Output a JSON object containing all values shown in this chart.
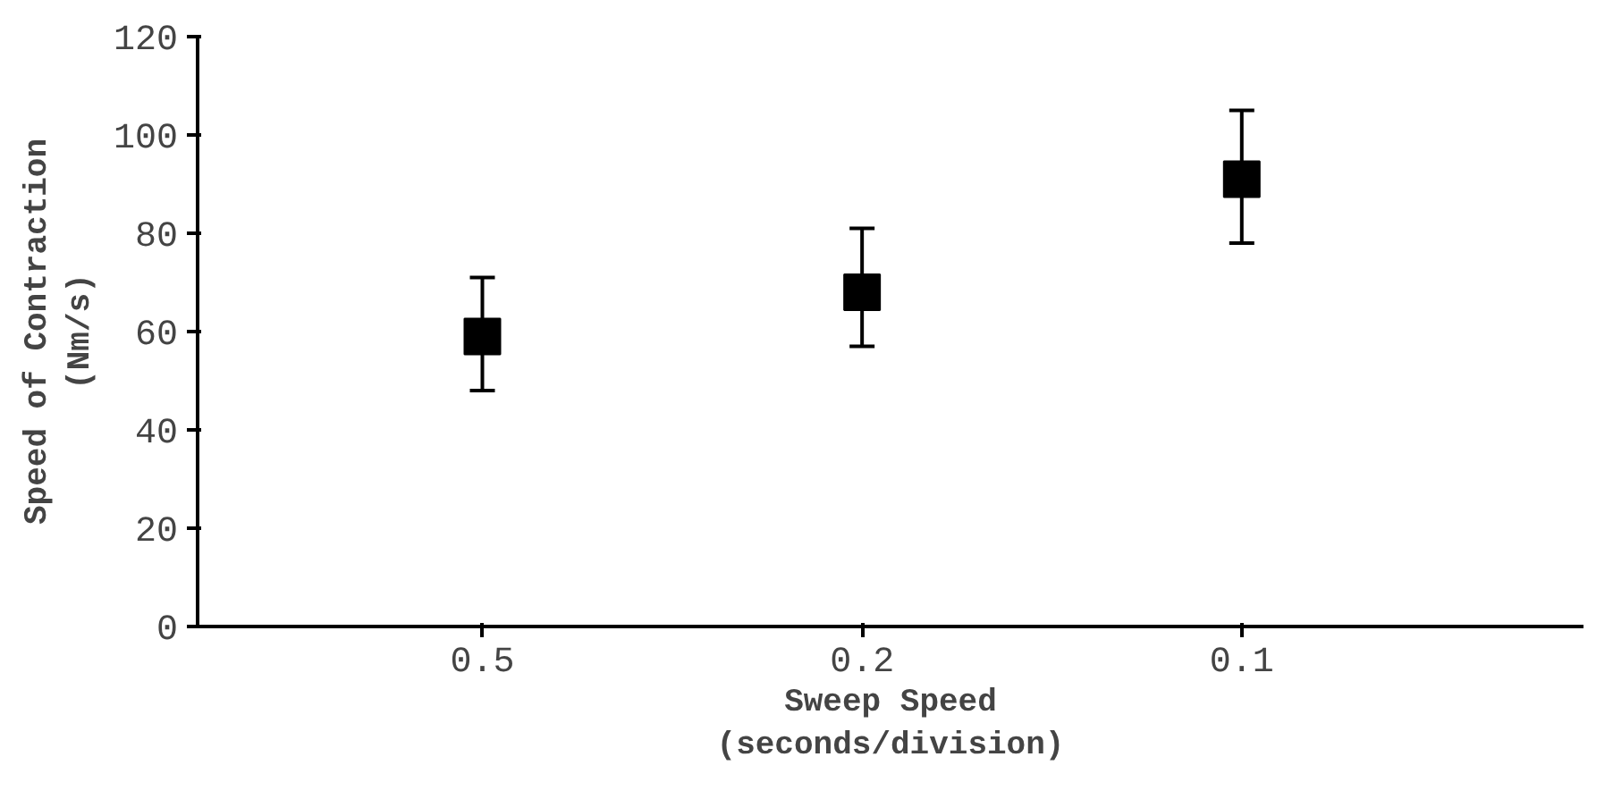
{
  "chart_data": {
    "type": "scatter",
    "xlabel": "Sweep Speed\n(seconds/division)",
    "ylabel": "Speed of Contraction\n(Nm/s)",
    "categories": [
      "0.5",
      "0.2",
      "0.1"
    ],
    "values": [
      59,
      68,
      91
    ],
    "errors": [
      [
        48,
        71
      ],
      [
        57,
        81
      ],
      [
        78,
        105
      ]
    ],
    "color": "#000000",
    "marker": "square",
    "ylim": [
      0,
      120
    ],
    "yticks": [
      0,
      20,
      40,
      60,
      80,
      100,
      120
    ],
    "grid": false
  }
}
